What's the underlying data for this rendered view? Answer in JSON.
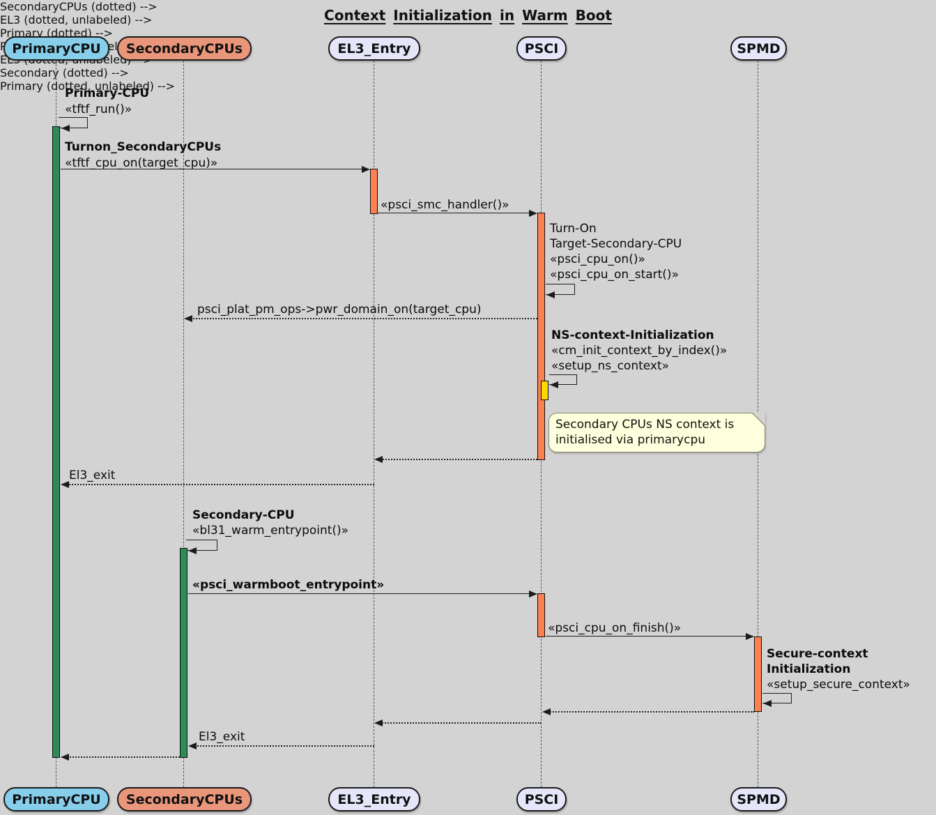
{
  "title": "Context Initialization in Warm Boot",
  "participants": {
    "primary": "PrimaryCPU",
    "secondary": "SecondaryCPUs",
    "el3": "EL3_Entry",
    "psci": "PSCI",
    "spmd": "SPMD"
  },
  "colors": {
    "background": "#D3D3D3",
    "primary_fill": "#87CEEB",
    "secondary_fill": "#E9967A",
    "participant_fill": "#E6E6FA",
    "activation_green": "#2E8B57",
    "activation_orange": "#FB8150",
    "activation_yellow": "#FFD700",
    "note_fill": "#FEFFDC"
  },
  "messages": {
    "tftf_run": {
      "name": "Primary-CPU",
      "call": "«tftf_run()»"
    },
    "turnon_secondary": {
      "name": "Turnon_SecondaryCPUs",
      "call": "«tftf_cpu_on(target_cpu)»"
    },
    "smc_handler": {
      "call": "«psci_smc_handler()»"
    },
    "turn_on_target": {
      "line1": "Turn-On",
      "line2": "Target-Secondary-CPU",
      "line3": "«psci_cpu_on()»",
      "line4": "«psci_cpu_on_start()»"
    },
    "pwr_domain_on": {
      "call": "psci_plat_pm_ops->pwr_domain_on(target_cpu)"
    },
    "ns_context_init": {
      "name": "NS-context-Initialization",
      "line2": "«cm_init_context_by_index()»",
      "line3": "«setup_ns_context»"
    },
    "el3_exit_first": {
      "call": "El3_exit"
    },
    "secondary_warm": {
      "name": "Secondary-CPU",
      "call": "«bl31_warm_entrypoint()»"
    },
    "warmboot_entrypoint": {
      "call": "«psci_warmboot_entrypoint»"
    },
    "cpu_on_finish": {
      "call": "«psci_cpu_on_finish()»"
    },
    "secure_context_init": {
      "name1": "Secure-context",
      "name2": "Initialization",
      "call": "«setup_secure_context»"
    },
    "el3_exit_second": {
      "call": "El3_exit"
    }
  },
  "note": {
    "line1": "Secondary CPUs NS context is",
    "line2": "initialised via primarycpu"
  }
}
